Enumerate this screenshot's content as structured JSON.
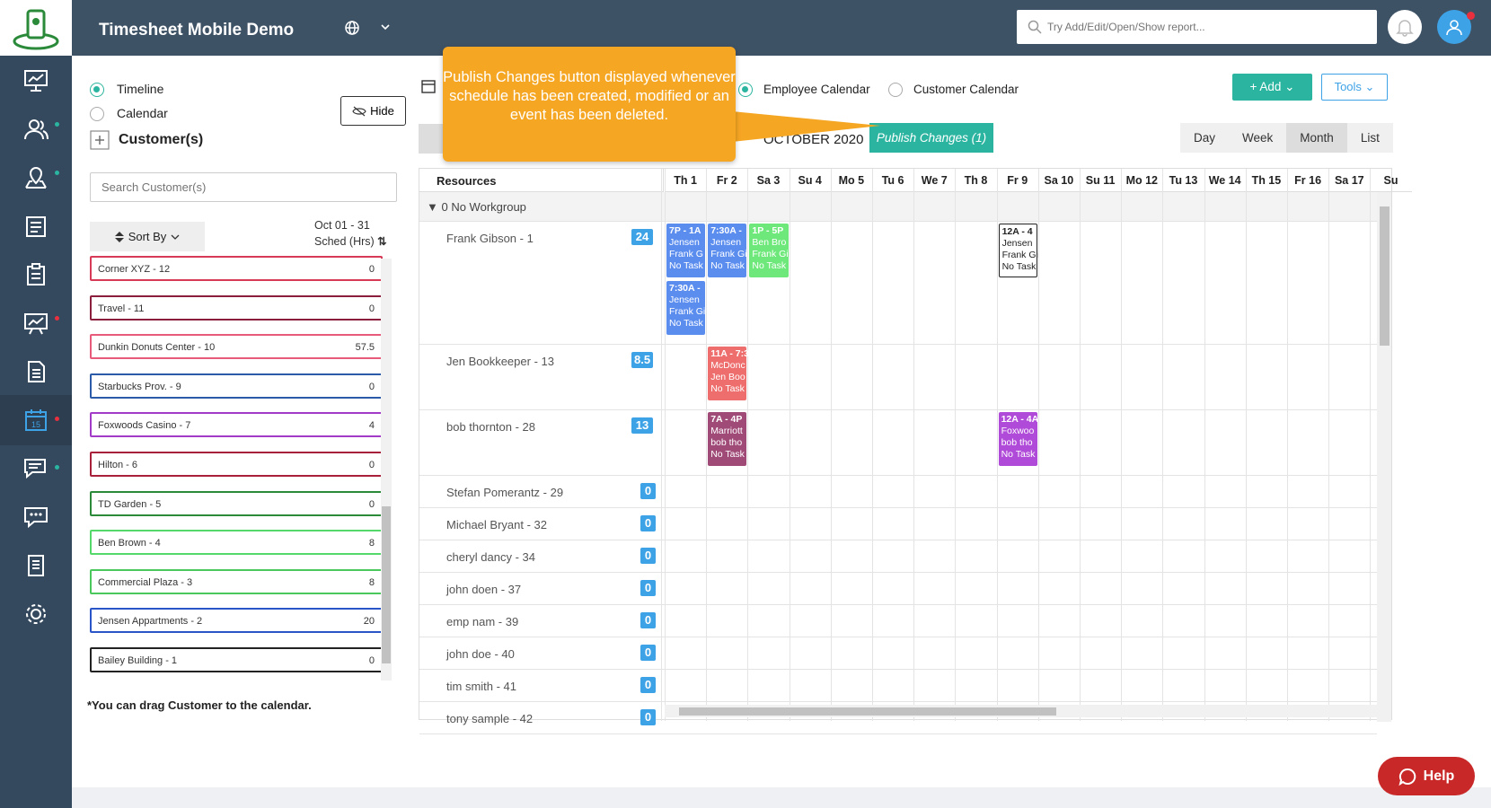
{
  "app": {
    "title": "Timesheet Mobile Demo"
  },
  "search": {
    "placeholder": "Try Add/Edit/Open/Show report..."
  },
  "left": {
    "timeline_label": "Timeline",
    "calendar_label": "Calendar",
    "customers_label": "Customer(s)",
    "hide_label": "Hide",
    "search_placeholder": "Search Customer(s)",
    "sort_label": "Sort By",
    "range": "Oct 01 - 31",
    "sched_label": "Sched (Hrs)",
    "drag_note": "*You can drag Customer to the calendar.",
    "customers": [
      {
        "name": "Corner XYZ - 12",
        "hours": "0",
        "color": "#d63a56"
      },
      {
        "name": "Travel - 11",
        "hours": "0",
        "color": "#8b1e3c"
      },
      {
        "name": "Dunkin Donuts Center - 10",
        "hours": "57.5",
        "color": "#e85a7a"
      },
      {
        "name": "Starbucks Prov. - 9",
        "hours": "0",
        "color": "#2a5aa8"
      },
      {
        "name": "Foxwoods Casino - 7",
        "hours": "4",
        "color": "#a23cc8"
      },
      {
        "name": "Hilton - 6",
        "hours": "0",
        "color": "#a8203a"
      },
      {
        "name": "TD Garden - 5",
        "hours": "0",
        "color": "#2a8a3a"
      },
      {
        "name": "Ben Brown - 4",
        "hours": "8",
        "color": "#55d86a"
      },
      {
        "name": "Commercial Plaza - 3",
        "hours": "8",
        "color": "#4ac85c"
      },
      {
        "name": "Jensen Appartments - 2",
        "hours": "20",
        "color": "#2a55c8"
      },
      {
        "name": "Bailey Building - 1",
        "hours": "0",
        "color": "#222222"
      }
    ]
  },
  "toolbar": {
    "employee_calendar": "Employee Calendar",
    "customer_calendar": "Customer Calendar",
    "add_label": "+ Add",
    "tools_label": "Tools",
    "month_title": "OCTOBER 2020",
    "publish_label": "Publish Changes (1)",
    "views": [
      "Day",
      "Week",
      "Month",
      "List"
    ],
    "selected_view": "Month"
  },
  "tooltip": {
    "text": "Publish Changes button displayed whenever schedule has been created, modified or an event has been deleted."
  },
  "grid": {
    "resources_header": "Resources",
    "workgroup": "0 No Workgroup",
    "days": [
      "Th 1",
      "Fr 2",
      "Sa 3",
      "Su 4",
      "Mo 5",
      "Tu 6",
      "We 7",
      "Th 8",
      "Fr 9",
      "Sa 10",
      "Su 11",
      "Mo 12",
      "Tu 13",
      "We 14",
      "Th 15",
      "Fr 16",
      "Sa 17",
      "Su"
    ],
    "rows": [
      {
        "name": "Frank Gibson - 1",
        "hours": "24"
      },
      {
        "name": "Jen Bookkeeper - 13",
        "hours": "8.5"
      },
      {
        "name": "bob thornton - 28",
        "hours": "13"
      },
      {
        "name": "Stefan Pomerantz - 29",
        "hours": "0"
      },
      {
        "name": "Michael Bryant - 32",
        "hours": "0"
      },
      {
        "name": "cheryl dancy - 34",
        "hours": "0"
      },
      {
        "name": "john doen - 37",
        "hours": "0"
      },
      {
        "name": "emp nam - 39",
        "hours": "0"
      },
      {
        "name": "john doe - 40",
        "hours": "0"
      },
      {
        "name": "tim smith - 41",
        "hours": "0"
      },
      {
        "name": "tony sample - 42",
        "hours": "0"
      }
    ],
    "events": [
      {
        "time": "7P - 1A",
        "l1": "Jensen",
        "l2": "Frank G",
        "l3": "No Task",
        "color": "#5b8def"
      },
      {
        "time": "7:30A -",
        "l1": "Jensen",
        "l2": "Frank Gi",
        "l3": "No Task",
        "color": "#5b8def"
      },
      {
        "time": "1P - 5P",
        "l1": "Ben Bro",
        "l2": "Frank Gi",
        "l3": "No Task",
        "color": "#6ee87a"
      },
      {
        "time": "7:30A -",
        "l1": "Jensen",
        "l2": "Frank Gi",
        "l3": "No Task",
        "color": "#5b8def"
      },
      {
        "time": "12A - 4",
        "l1": "Jensen",
        "l2": "Frank Gi",
        "l3": "No Task",
        "color": "#ffffff"
      },
      {
        "time": "11A - 7:3",
        "l1": "McDonc",
        "l2": "Jen Boo",
        "l3": "No Task",
        "color": "#ee6e6e"
      },
      {
        "time": "7A - 4P",
        "l1": "Marriott",
        "l2": "bob tho",
        "l3": "No Task",
        "color": "#a04a78"
      },
      {
        "time": "12A - 4A",
        "l1": "Foxwoo",
        "l2": "bob tho",
        "l3": "No Task",
        "color": "#b04ad8"
      }
    ]
  },
  "help": {
    "label": "Help"
  }
}
